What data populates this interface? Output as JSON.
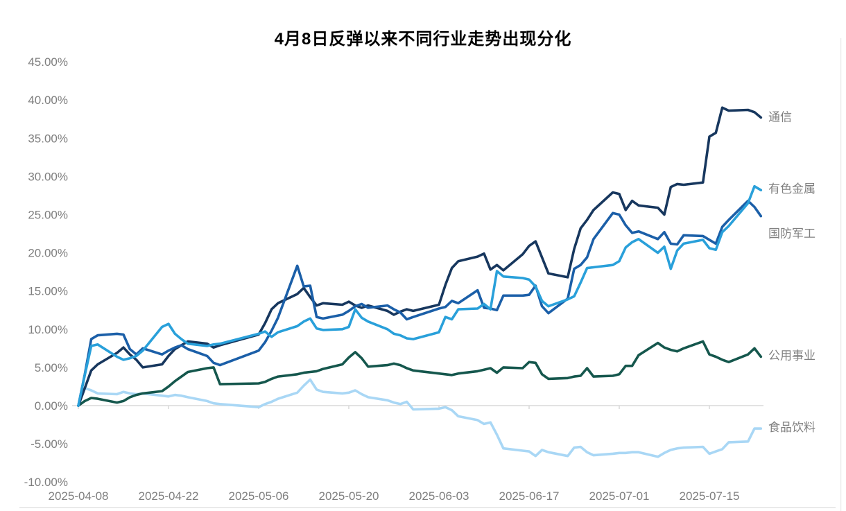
{
  "chart_data": {
    "type": "line",
    "title": "4月8日反弹以来不同行业走势出现分化",
    "xlabel": "",
    "ylabel": "",
    "ylim": [
      -10,
      45
    ],
    "y_tick_step": 5,
    "y_tick_labels": [
      "45.00%",
      "40.00%",
      "35.00%",
      "30.00%",
      "25.00%",
      "20.00%",
      "15.00%",
      "10.00%",
      "5.00%",
      "0.00%",
      "-5.00%",
      "-10.00%"
    ],
    "x_tick_labels": [
      "2025-04-08",
      "2025-04-22",
      "2025-05-06",
      "2025-05-20",
      "2025-06-03",
      "2025-06-17",
      "2025-07-01",
      "2025-07-15"
    ],
    "grid": "off",
    "legend_position": "right-of-line-ends",
    "axis_color": "#d9d9d9",
    "label_color": "#7f7f7f",
    "x": [
      "2025-04-08",
      "2025-04-09",
      "2025-04-10",
      "2025-04-11",
      "2025-04-14",
      "2025-04-15",
      "2025-04-16",
      "2025-04-17",
      "2025-04-18",
      "2025-04-21",
      "2025-04-22",
      "2025-04-23",
      "2025-04-24",
      "2025-04-25",
      "2025-04-28",
      "2025-04-29",
      "2025-04-30",
      "2025-05-06",
      "2025-05-07",
      "2025-05-08",
      "2025-05-09",
      "2025-05-12",
      "2025-05-13",
      "2025-05-14",
      "2025-05-15",
      "2025-05-16",
      "2025-05-19",
      "2025-05-20",
      "2025-05-21",
      "2025-05-22",
      "2025-05-23",
      "2025-05-26",
      "2025-05-27",
      "2025-05-28",
      "2025-05-29",
      "2025-05-30",
      "2025-06-03",
      "2025-06-04",
      "2025-06-05",
      "2025-06-06",
      "2025-06-09",
      "2025-06-10",
      "2025-06-11",
      "2025-06-12",
      "2025-06-13",
      "2025-06-16",
      "2025-06-17",
      "2025-06-18",
      "2025-06-19",
      "2025-06-20",
      "2025-06-23",
      "2025-06-24",
      "2025-06-25",
      "2025-06-26",
      "2025-06-27",
      "2025-06-30",
      "2025-07-01",
      "2025-07-02",
      "2025-07-03",
      "2025-07-04",
      "2025-07-07",
      "2025-07-08",
      "2025-07-09",
      "2025-07-10",
      "2025-07-11",
      "2025-07-14",
      "2025-07-15",
      "2025-07-16",
      "2025-07-17",
      "2025-07-18",
      "2025-07-21",
      "2025-07-22",
      "2025-07-23"
    ],
    "series": [
      {
        "id": "food-beverage",
        "name": "食品饮料",
        "color": "#a9d7f5",
        "label_dy": 4,
        "values": [
          0,
          2.3,
          2.0,
          1.6,
          1.5,
          1.8,
          1.6,
          1.5,
          1.6,
          1.3,
          1.2,
          1.4,
          1.3,
          1.1,
          0.6,
          0.3,
          0.2,
          -0.2,
          0.2,
          0.5,
          0.9,
          1.7,
          2.6,
          3.4,
          2.1,
          1.8,
          1.6,
          1.7,
          2.0,
          1.5,
          1.1,
          0.7,
          0.4,
          0.2,
          0.5,
          -0.5,
          -0.4,
          -0.2,
          -0.6,
          -1.4,
          -1.9,
          -2.4,
          -2.2,
          -3.8,
          -5.6,
          -5.9,
          -6.0,
          -6.6,
          -5.8,
          -6.1,
          -6.6,
          -5.5,
          -5.4,
          -6.1,
          -6.5,
          -6.3,
          -6.2,
          -6.2,
          -6.1,
          -6.1,
          -6.7,
          -6.2,
          -5.8,
          -5.6,
          -5.5,
          -5.4,
          -6.3,
          -6.0,
          -5.7,
          -4.8,
          -4.7,
          -3.0,
          -3.0
        ]
      },
      {
        "id": "utilities",
        "name": "公用事业",
        "color": "#15574d",
        "label_dy": 4,
        "values": [
          0,
          0.6,
          1.0,
          0.9,
          0.4,
          0.6,
          1.1,
          1.4,
          1.6,
          1.9,
          2.5,
          3.2,
          3.8,
          4.4,
          4.9,
          5.0,
          2.8,
          2.9,
          3.1,
          3.5,
          3.8,
          4.1,
          4.3,
          4.4,
          4.5,
          4.8,
          5.4,
          6.3,
          7.0,
          6.2,
          5.1,
          5.3,
          5.5,
          5.3,
          4.9,
          4.6,
          4.2,
          4.1,
          4.0,
          4.2,
          4.5,
          4.7,
          4.9,
          4.3,
          5.0,
          4.9,
          5.7,
          5.6,
          4.1,
          3.5,
          3.6,
          3.8,
          3.9,
          4.9,
          3.8,
          3.9,
          4.1,
          5.2,
          5.2,
          6.6,
          8.2,
          7.6,
          7.3,
          7.1,
          7.5,
          8.4,
          6.7,
          6.4,
          6.0,
          5.7,
          6.7,
          7.5,
          6.4
        ]
      },
      {
        "id": "telecom",
        "name": "通信",
        "color": "#17375e",
        "label_dy": 5,
        "values": [
          0,
          2.3,
          4.6,
          5.4,
          6.9,
          7.6,
          6.7,
          6.0,
          5.0,
          5.4,
          6.5,
          7.4,
          7.9,
          8.4,
          8.1,
          7.6,
          7.9,
          9.3,
          10.8,
          12.6,
          13.4,
          14.6,
          15.4,
          14.2,
          13.1,
          13.4,
          13.2,
          13.6,
          13.1,
          12.8,
          13.1,
          12.4,
          11.9,
          12.3,
          12.6,
          12.4,
          13.2,
          15.8,
          18.0,
          18.9,
          19.5,
          19.9,
          17.8,
          18.4,
          17.7,
          19.8,
          20.9,
          21.5,
          19.4,
          17.3,
          16.8,
          20.5,
          23.2,
          24.3,
          25.6,
          27.9,
          27.7,
          25.6,
          26.8,
          26.2,
          25.9,
          25.0,
          28.6,
          29.0,
          28.9,
          29.2,
          35.2,
          35.7,
          39.0,
          38.6,
          38.7,
          38.4,
          37.7
        ]
      },
      {
        "id": "defense",
        "name": "国防军工",
        "color": "#1b5fa8",
        "label_dy": 31,
        "values": [
          0,
          4.1,
          8.7,
          9.2,
          9.4,
          9.3,
          7.4,
          6.7,
          7.5,
          6.7,
          7.2,
          7.6,
          7.9,
          7.4,
          6.5,
          5.6,
          5.3,
          7.2,
          8.3,
          9.8,
          11.5,
          18.3,
          15.6,
          15.7,
          11.6,
          11.4,
          11.9,
          12.4,
          13.0,
          13.3,
          12.8,
          13.1,
          12.6,
          12.2,
          11.3,
          11.6,
          12.7,
          12.9,
          13.7,
          13.4,
          15.1,
          12.8,
          12.7,
          12.5,
          14.4,
          14.4,
          14.5,
          15.7,
          13.0,
          12.1,
          14.0,
          17.9,
          18.4,
          19.4,
          21.8,
          25.2,
          25.0,
          23.6,
          22.6,
          22.8,
          21.8,
          22.7,
          21.2,
          21.1,
          22.3,
          22.2,
          21.7,
          21.2,
          23.4,
          24.3,
          26.8,
          26.0,
          24.8
        ]
      },
      {
        "id": "nonferrous-metals",
        "name": "有色金属",
        "color": "#29a0da",
        "label_dy": 4,
        "values": [
          0,
          4.0,
          7.8,
          8.0,
          6.4,
          6.0,
          6.2,
          6.5,
          7.2,
          10.3,
          10.7,
          9.4,
          8.7,
          8.1,
          7.8,
          8.0,
          8.1,
          9.4,
          9.7,
          9.0,
          9.6,
          10.4,
          11.0,
          11.4,
          10.1,
          9.9,
          10.0,
          10.3,
          12.6,
          11.5,
          11.0,
          10.0,
          9.4,
          9.2,
          8.8,
          8.7,
          9.6,
          11.6,
          11.3,
          12.6,
          12.7,
          13.3,
          12.6,
          17.6,
          16.9,
          16.7,
          16.5,
          15.6,
          13.7,
          13.0,
          13.9,
          14.3,
          16.1,
          18.0,
          18.1,
          18.4,
          18.9,
          20.7,
          21.4,
          21.8,
          20.0,
          20.8,
          17.9,
          20.3,
          21.2,
          21.7,
          20.6,
          20.4,
          22.7,
          23.5,
          26.5,
          28.7,
          28.2
        ]
      }
    ]
  }
}
